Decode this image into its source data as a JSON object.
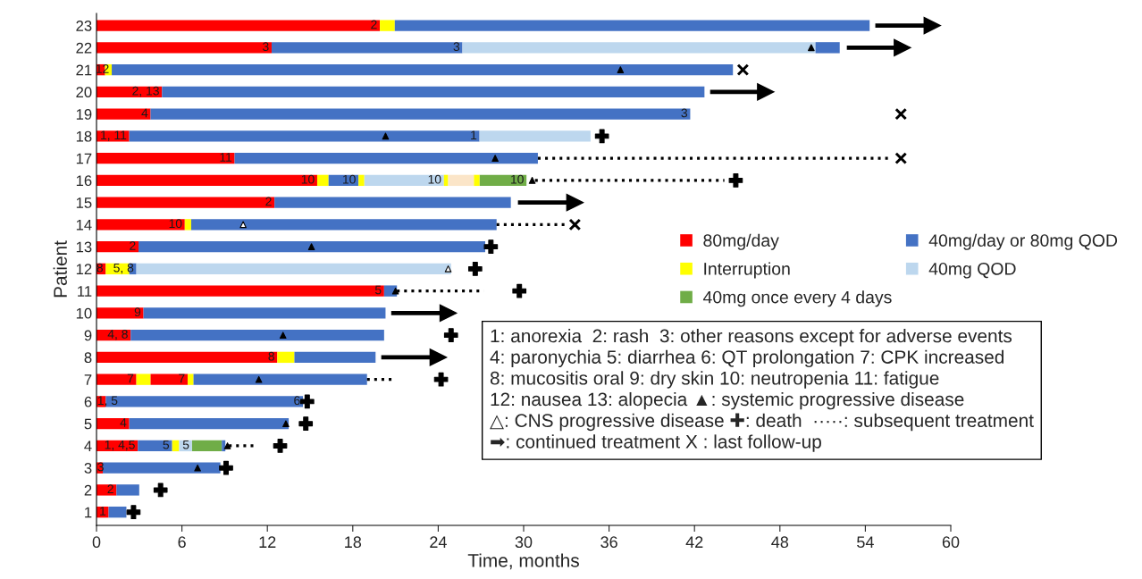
{
  "chart_data": {
    "type": "bar",
    "orientation": "horizontal",
    "xlabel": "Time, months",
    "ylabel": "Patient",
    "categories": [
      "23",
      "22",
      "21",
      "20",
      "19",
      "18",
      "17",
      "16",
      "15",
      "14",
      "13",
      "12",
      "11",
      "10",
      "9",
      "8",
      "7",
      "6",
      "5",
      "4",
      "3",
      "2",
      "1"
    ],
    "xlim": [
      0,
      60
    ],
    "xticks": [
      0,
      6,
      12,
      18,
      24,
      30,
      36,
      42,
      48,
      54,
      60
    ],
    "grid": false,
    "legend": "right",
    "series": [
      {
        "name": "80mg/day",
        "color": "#ff0000",
        "values": [
          19.9,
          12.3,
          0.6,
          4.6,
          3.8,
          2.3,
          9.7,
          15.5,
          12.5,
          6.2,
          2.95,
          0.65,
          20.2,
          3.3,
          2.4,
          12.7,
          2.8,
          0.65,
          2.3,
          2.9,
          0.44,
          1.4,
          0.85
        ],
        "base": [
          0,
          0,
          0,
          0,
          0,
          0,
          0,
          0,
          0,
          0,
          0,
          0,
          0,
          0,
          0,
          0,
          0,
          0,
          0,
          0,
          0,
          0,
          0
        ]
      },
      {
        "name": "Interruption",
        "color": "#ffff00",
        "values": [
          1.05,
          null,
          0.47,
          null,
          null,
          null,
          null,
          0.8,
          null,
          0.45,
          null,
          1.65,
          null,
          null,
          null,
          1.2,
          1.0,
          null,
          null,
          0.5,
          null,
          null,
          null
        ],
        "base": [
          19.9,
          null,
          0.6,
          null,
          null,
          null,
          null,
          15.5,
          null,
          6.2,
          null,
          0.65,
          null,
          null,
          null,
          12.7,
          2.8,
          null,
          null,
          5.3,
          null,
          null,
          null
        ]
      },
      {
        "name": "40mg once every 4 days",
        "color": "#70ad47",
        "values": [
          null,
          null,
          null,
          null,
          null,
          null,
          null,
          3.3,
          null,
          null,
          null,
          null,
          null,
          null,
          null,
          null,
          null,
          null,
          null,
          2.1,
          null,
          null,
          null
        ],
        "base": [
          null,
          null,
          null,
          null,
          null,
          null,
          null,
          26.9,
          null,
          null,
          null,
          null,
          null,
          null,
          null,
          null,
          null,
          null,
          null,
          6.7,
          null,
          null,
          null
        ]
      },
      {
        "name": "40mg/day or 80mg QOD",
        "color": "#4472c4",
        "values": [
          33.35,
          13.4,
          43.63,
          38.1,
          37.9,
          24.6,
          21.3,
          2.1,
          16.6,
          21.45,
          24.35,
          0.5,
          0.9,
          17.0,
          17.8,
          5.7,
          12.2,
          13.85,
          11.2,
          2.4,
          8.26,
          1.6,
          1.25
        ],
        "base": [
          20.95,
          12.3,
          1.07,
          4.6,
          3.8,
          2.3,
          9.7,
          16.3,
          12.5,
          6.65,
          2.95,
          2.3,
          20.2,
          3.3,
          2.4,
          13.9,
          6.8,
          0.65,
          2.3,
          2.9,
          0.44,
          1.4,
          0.85
        ]
      },
      {
        "name": "40mg QOD",
        "color": "#bdd7ee",
        "values": [
          null,
          24.8,
          null,
          null,
          null,
          7.8,
          null,
          5.6,
          null,
          null,
          null,
          22.1,
          null,
          null,
          null,
          null,
          null,
          null,
          null,
          0.9,
          null,
          null,
          null
        ],
        "base": [
          null,
          25.7,
          null,
          null,
          null,
          26.9,
          null,
          18.8,
          null,
          null,
          null,
          2.8,
          null,
          null,
          null,
          null,
          null,
          null,
          null,
          5.8,
          null,
          null,
          null
        ]
      },
      {
        "color": "#ff0000",
        "values": [
          null,
          null,
          null,
          null,
          null,
          null,
          null,
          null,
          null,
          null,
          null,
          null,
          null,
          null,
          null,
          null,
          2.6,
          null,
          null,
          null,
          null,
          null,
          null
        ],
        "base": [
          null,
          null,
          null,
          null,
          null,
          null,
          null,
          null,
          null,
          null,
          null,
          null,
          null,
          null,
          null,
          null,
          3.8,
          null,
          null,
          null,
          null,
          null,
          null
        ]
      },
      {
        "color": "#ffff00",
        "values": [
          null,
          null,
          null,
          null,
          null,
          null,
          null,
          0.4,
          null,
          null,
          null,
          null,
          null,
          null,
          null,
          null,
          0.4,
          null,
          null,
          null,
          null,
          null,
          null
        ],
        "base": [
          null,
          null,
          null,
          null,
          null,
          null,
          null,
          18.4,
          null,
          null,
          null,
          null,
          null,
          null,
          null,
          null,
          6.4,
          null,
          null,
          null,
          null,
          null,
          null
        ]
      },
      {
        "color": "#ffff00",
        "values": [
          null,
          null,
          null,
          null,
          null,
          null,
          null,
          0.3,
          null,
          null,
          null,
          null,
          null,
          null,
          null,
          null,
          null,
          null,
          null,
          null,
          null,
          null,
          null
        ],
        "base": [
          null,
          null,
          null,
          null,
          null,
          null,
          null,
          24.4,
          null,
          null,
          null,
          null,
          null,
          null,
          null,
          null,
          null,
          null,
          null,
          null,
          null,
          null,
          null
        ]
      },
      {
        "color": "#ffff00",
        "values": [
          null,
          null,
          null,
          null,
          null,
          null,
          null,
          0.4,
          null,
          null,
          null,
          null,
          null,
          null,
          null,
          null,
          null,
          null,
          null,
          null,
          null,
          null,
          null
        ],
        "base": [
          null,
          null,
          null,
          null,
          null,
          null,
          null,
          26.5,
          null,
          null,
          null,
          null,
          null,
          null,
          null,
          null,
          null,
          null,
          null,
          null,
          null,
          null,
          null
        ]
      },
      {
        "color": "#4472c4",
        "values": [
          null,
          1.7,
          null,
          null,
          null,
          null,
          null,
          null,
          null,
          null,
          null,
          null,
          null,
          null,
          null,
          null,
          null,
          null,
          null,
          0.25,
          null,
          null,
          null
        ],
        "base": [
          null,
          50.5,
          null,
          null,
          null,
          null,
          null,
          null,
          null,
          null,
          null,
          null,
          null,
          null,
          null,
          null,
          null,
          null,
          null,
          8.8,
          null,
          null,
          null
        ]
      },
      {
        "color": "#fbe5c8",
        "values": [
          null,
          null,
          null,
          null,
          null,
          null,
          null,
          1.8,
          null,
          null,
          null,
          null,
          null,
          null,
          null,
          null,
          null,
          null,
          null,
          null,
          null,
          null,
          null
        ],
        "base": [
          null,
          null,
          null,
          null,
          null,
          null,
          null,
          24.7,
          null,
          null,
          null,
          null,
          null,
          null,
          null,
          null,
          null,
          null,
          null,
          null,
          null,
          null,
          null
        ]
      },
      {
        "type": "scatter",
        "marker": "triangle",
        "color": "#000000",
        "x": [
          "22",
          "21",
          "18",
          "17",
          "16",
          "13",
          "11",
          "9",
          "7",
          "5",
          "4",
          "3"
        ],
        "values": [
          50.2,
          36.8,
          20.3,
          28.0,
          30.6,
          15.1,
          21.0,
          13.1,
          11.4,
          13.3,
          9.2,
          7.1
        ]
      },
      {
        "type": "scatter",
        "marker": "triangle",
        "color": "#ffffff",
        "x": [
          "14",
          "12"
        ],
        "values": [
          10.3,
          24.7
        ]
      },
      {
        "type": "scatter",
        "marker": "cross",
        "color": "#000000",
        "x": [
          "18",
          "16",
          "13",
          "12",
          "11",
          "9",
          "7",
          "6",
          "5",
          "4",
          "3",
          "2",
          "1"
        ],
        "values": [
          35.5,
          44.9,
          27.7,
          26.6,
          29.7,
          24.9,
          24.2,
          14.8,
          14.7,
          12.9,
          9.1,
          4.5,
          2.6
        ]
      },
      {
        "type": "line",
        "line_style": "dotted",
        "color": "#000000",
        "x": [
          "17",
          "17"
        ],
        "values": [
          31.0,
          55.9
        ]
      },
      {
        "type": "line",
        "line_style": "dotted",
        "color": "#000000",
        "x": [
          "16",
          "16"
        ],
        "values": [
          30.8,
          44.1
        ]
      },
      {
        "type": "line",
        "line_style": "dotted",
        "color": "#000000",
        "x": [
          "14",
          "14"
        ],
        "values": [
          28.1,
          32.9
        ]
      },
      {
        "type": "line",
        "line_style": "dotted",
        "color": "#000000",
        "x": [
          "11",
          "11"
        ],
        "values": [
          21.1,
          27.2
        ]
      },
      {
        "type": "line",
        "line_style": "dotted",
        "color": "#000000",
        "x": [
          "7",
          "7"
        ],
        "values": [
          19.0,
          21.0
        ]
      },
      {
        "type": "line",
        "line_style": "dotted",
        "color": "#000000",
        "x": [
          "4",
          "4"
        ],
        "values": [
          9.3,
          11.1
        ]
      },
      {
        "type": "line",
        "marker": "triangle",
        "line_style": "solid",
        "color": "#000000",
        "x": [
          "23",
          "23"
        ],
        "values": [
          54.7,
          58.7
        ]
      },
      {
        "type": "line",
        "marker": "triangle",
        "line_style": "solid",
        "color": "#000000",
        "x": [
          "22",
          "22"
        ],
        "values": [
          52.7,
          56.6
        ]
      },
      {
        "type": "line",
        "marker": "triangle",
        "line_style": "solid",
        "color": "#000000",
        "x": [
          "20",
          "20"
        ],
        "values": [
          43.1,
          47.0
        ]
      },
      {
        "type": "line",
        "marker": "triangle",
        "line_style": "solid",
        "color": "#000000",
        "x": [
          "15",
          "15"
        ],
        "values": [
          29.6,
          33.6
        ]
      },
      {
        "type": "line",
        "marker": "triangle",
        "line_style": "solid",
        "color": "#000000",
        "x": [
          "10",
          "10"
        ],
        "values": [
          20.7,
          24.7
        ]
      },
      {
        "type": "line",
        "marker": "triangle",
        "line_style": "solid",
        "color": "#000000",
        "x": [
          "8",
          "8"
        ],
        "values": [
          20.0,
          24.0
        ]
      },
      {
        "type": "scatter",
        "marker": "x",
        "color": "#000000",
        "x": [
          "21",
          "19",
          "17",
          "14"
        ],
        "values": [
          45.4,
          56.5,
          56.5,
          33.6
        ]
      }
    ],
    "annotations": [
      {
        "text": "2",
        "x": 19.9,
        "y": "23"
      },
      {
        "text": "3",
        "x": 12.3,
        "y": "22"
      },
      {
        "text": "3",
        "x": 25.7,
        "y": "22"
      },
      {
        "text": "12",
        "x": 1.07,
        "y": "21"
      },
      {
        "text": "2, 13",
        "x": 4.6,
        "y": "20"
      },
      {
        "text": "4",
        "x": 3.8,
        "y": "19"
      },
      {
        "text": "3",
        "x": 41.7,
        "y": "19"
      },
      {
        "text": "1, 11",
        "x": 2.3,
        "y": "18"
      },
      {
        "text": "1",
        "x": 26.9,
        "y": "18"
      },
      {
        "text": "11",
        "x": 9.7,
        "y": "17"
      },
      {
        "text": "10",
        "x": 15.5,
        "y": "16"
      },
      {
        "text": "10",
        "x": 18.4,
        "y": "16"
      },
      {
        "text": "10",
        "x": 24.4,
        "y": "16"
      },
      {
        "text": "10",
        "x": 30.2,
        "y": "16"
      },
      {
        "text": "2",
        "x": 12.5,
        "y": "15"
      },
      {
        "text": "10",
        "x": 6.2,
        "y": "14"
      },
      {
        "text": "2",
        "x": 2.95,
        "y": "13"
      },
      {
        "text": "8",
        "x": 0.65,
        "y": "12"
      },
      {
        "text": "5, 8",
        "x": 2.8,
        "y": "12"
      },
      {
        "text": "5",
        "x": 20.2,
        "y": "11"
      },
      {
        "text": "9",
        "x": 3.3,
        "y": "10"
      },
      {
        "text": "4, 8",
        "x": 2.4,
        "y": "9"
      },
      {
        "text": "8",
        "x": 12.7,
        "y": "8"
      },
      {
        "text": "7",
        "x": 2.8,
        "y": "7"
      },
      {
        "text": "7",
        "x": 6.4,
        "y": "7"
      },
      {
        "text": "1, 5",
        "x": 0.65,
        "y": "6"
      },
      {
        "text": "6",
        "x": 14.5,
        "y": "6"
      },
      {
        "text": "4",
        "x": 2.3,
        "y": "5"
      },
      {
        "text": "1, 4,5",
        "x": 2.9,
        "y": "4"
      },
      {
        "text": "5",
        "x": 5.3,
        "y": "4"
      },
      {
        "text": "5",
        "x": 6.7,
        "y": "4"
      },
      {
        "text": "3",
        "x": 0.44,
        "y": "3"
      },
      {
        "text": "2",
        "x": 1.4,
        "y": "2"
      },
      {
        "text": "1",
        "x": 0.85,
        "y": "1"
      },
      "1: anorexia  2: rash  3: other reasons except for adverse events",
      "4: paronychia 5: diarrhea 6: QT prolongation 7: CPK increased",
      "8: mucositis oral 9: dry skin 10: neutropenia 11: fatigue",
      "12: nausea 13: alopecia ▲: systemic progressive disease",
      "△: CNS progressive disease ✚: death  ·····: subsequent treatment",
      "➡: continued treatment X : last follow-up"
    ]
  }
}
